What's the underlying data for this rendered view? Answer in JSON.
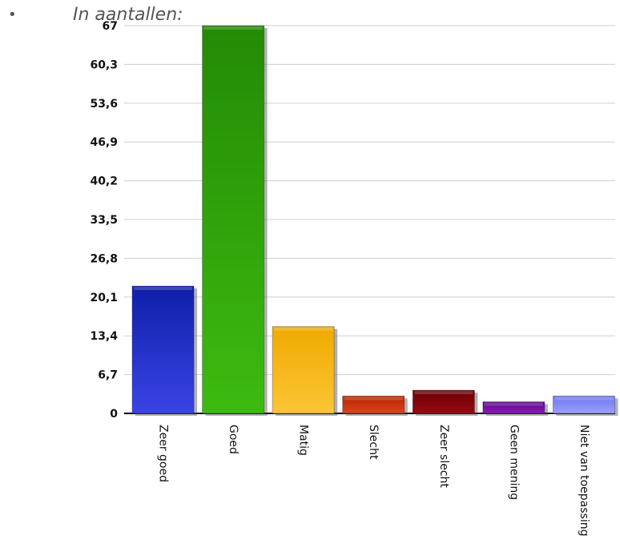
{
  "slide": {
    "bullet": "•",
    "heading": "In aantallen:"
  },
  "chart_data": {
    "type": "bar",
    "title": "",
    "xlabel": "",
    "ylabel": "",
    "ylim": [
      0,
      67
    ],
    "yticks": [
      "0",
      "6,7",
      "13,4",
      "20,1",
      "26,8",
      "33,5",
      "40,2",
      "46,9",
      "53,6",
      "60,3",
      "67"
    ],
    "categories": [
      "Zeer goed",
      "Goed",
      "Matig",
      "Slecht",
      "Zeer slecht",
      "Geen mening",
      "Niet van toepassing"
    ],
    "values": [
      22,
      67,
      15,
      3,
      4,
      2,
      3
    ],
    "colors": [
      {
        "top": "#0f1fa8",
        "bottom": "#3a44e6"
      },
      {
        "top": "#238a05",
        "bottom": "#3dbb10"
      },
      {
        "top": "#f0aa00",
        "bottom": "#fcc535"
      },
      {
        "top": "#b82500",
        "bottom": "#d94520"
      },
      {
        "top": "#6a0005",
        "bottom": "#990a10"
      },
      {
        "top": "#5a078a",
        "bottom": "#8a1ab8"
      },
      {
        "top": "#7076ee",
        "bottom": "#9aa0f8"
      }
    ],
    "grid": true,
    "legend": "none"
  }
}
